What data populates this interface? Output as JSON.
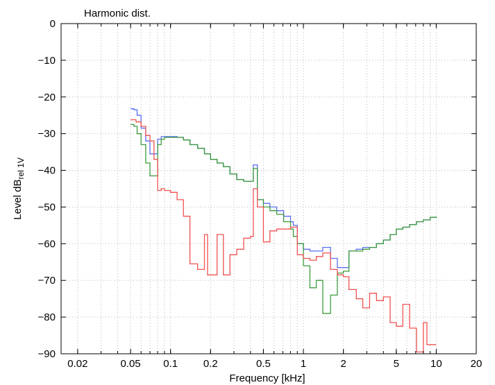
{
  "chart_data": {
    "type": "line",
    "title": "Harmonic dist.",
    "xlabel": "Frequency [kHz]",
    "ylabel": {
      "main": "Level dB",
      "sub": "rel 1V"
    },
    "xscale": "log",
    "xlim": [
      0.015,
      20
    ],
    "ylim": [
      -90,
      0
    ],
    "grid": true,
    "legend": "none",
    "xticks": [
      {
        "v": 0.02,
        "label": "0.02"
      },
      {
        "v": 0.05,
        "label": "0.05"
      },
      {
        "v": 0.1,
        "label": "0.1"
      },
      {
        "v": 0.2,
        "label": "0.2"
      },
      {
        "v": 0.5,
        "label": "0.5"
      },
      {
        "v": 1,
        "label": "1"
      },
      {
        "v": 2,
        "label": "2"
      },
      {
        "v": 5,
        "label": "5"
      },
      {
        "v": 10,
        "label": "10"
      },
      {
        "v": 20,
        "label": "20"
      }
    ],
    "yticks": [
      0,
      -10,
      -20,
      -30,
      -40,
      -50,
      -60,
      -70,
      -80,
      -90
    ],
    "series": [
      {
        "color": "#5a6ef0",
        "points": [
          [
            0.05,
            -23.2
          ],
          [
            0.053,
            -23.5
          ],
          [
            0.056,
            -25
          ],
          [
            0.06,
            -28.5
          ],
          [
            0.065,
            -32
          ],
          [
            0.07,
            -35.5
          ],
          [
            0.075,
            -35.5
          ],
          [
            0.08,
            -31.5
          ],
          [
            0.085,
            -30.8
          ],
          [
            0.09,
            -30.8
          ],
          [
            0.1,
            -30.8
          ],
          [
            0.112,
            -31
          ],
          [
            0.125,
            -31.7
          ],
          [
            0.14,
            -33
          ],
          [
            0.16,
            -34
          ],
          [
            0.18,
            -35.5
          ],
          [
            0.2,
            -37
          ],
          [
            0.224,
            -38
          ],
          [
            0.25,
            -39
          ],
          [
            0.28,
            -41
          ],
          [
            0.315,
            -42.5
          ],
          [
            0.355,
            -43
          ],
          [
            0.4,
            -43
          ],
          [
            0.42,
            -38.5
          ],
          [
            0.45,
            -38.5
          ],
          [
            0.45,
            -48
          ],
          [
            0.5,
            -49
          ],
          [
            0.56,
            -50
          ],
          [
            0.63,
            -51
          ],
          [
            0.71,
            -52.5
          ],
          [
            0.8,
            -54
          ],
          [
            0.84,
            -55
          ],
          [
            0.9,
            -60
          ],
          [
            1.0,
            -61.5
          ],
          [
            1.12,
            -62
          ],
          [
            1.25,
            -62
          ],
          [
            1.4,
            -61
          ],
          [
            1.6,
            -64
          ],
          [
            1.8,
            -66.5
          ],
          [
            2.0,
            -66.5
          ],
          [
            2.2,
            -62
          ],
          [
            2.5,
            -61.5
          ],
          [
            2.8,
            -61
          ],
          [
            3.15,
            -61
          ],
          [
            3.55,
            -60
          ],
          [
            4.0,
            -59
          ],
          [
            4.5,
            -57.5
          ],
          [
            5.0,
            -56
          ],
          [
            5.6,
            -55.5
          ],
          [
            6.3,
            -54.8
          ],
          [
            7.1,
            -54
          ],
          [
            8.0,
            -53.5
          ],
          [
            9.0,
            -52.8
          ],
          [
            10.0,
            -52.6
          ]
        ]
      },
      {
        "color": "#3c9a3c",
        "points": [
          [
            0.05,
            -27.5
          ],
          [
            0.053,
            -28
          ],
          [
            0.056,
            -30
          ],
          [
            0.06,
            -33
          ],
          [
            0.065,
            -38
          ],
          [
            0.07,
            -41.5
          ],
          [
            0.075,
            -41.5
          ],
          [
            0.08,
            -33
          ],
          [
            0.085,
            -31.5
          ],
          [
            0.09,
            -31
          ],
          [
            0.1,
            -31
          ],
          [
            0.112,
            -31
          ],
          [
            0.125,
            -31.7
          ],
          [
            0.14,
            -33
          ],
          [
            0.16,
            -34
          ],
          [
            0.18,
            -35.5
          ],
          [
            0.2,
            -37
          ],
          [
            0.224,
            -38
          ],
          [
            0.25,
            -39
          ],
          [
            0.28,
            -41
          ],
          [
            0.315,
            -42.5
          ],
          [
            0.355,
            -43
          ],
          [
            0.4,
            -43
          ],
          [
            0.42,
            -39.5
          ],
          [
            0.45,
            -39.5
          ],
          [
            0.45,
            -48
          ],
          [
            0.5,
            -50
          ],
          [
            0.56,
            -51
          ],
          [
            0.63,
            -52
          ],
          [
            0.71,
            -54
          ],
          [
            0.8,
            -56
          ],
          [
            0.84,
            -58
          ],
          [
            0.9,
            -60
          ],
          [
            1.0,
            -66
          ],
          [
            1.12,
            -72
          ],
          [
            1.25,
            -70
          ],
          [
            1.4,
            -79
          ],
          [
            1.6,
            -74
          ],
          [
            1.8,
            -68
          ],
          [
            2.0,
            -67.5
          ],
          [
            2.2,
            -62
          ],
          [
            2.5,
            -62
          ],
          [
            2.8,
            -61.5
          ],
          [
            3.15,
            -61
          ],
          [
            3.55,
            -60
          ],
          [
            4.0,
            -59
          ],
          [
            4.5,
            -57.5
          ],
          [
            5.0,
            -56
          ],
          [
            5.6,
            -55.5
          ],
          [
            6.3,
            -54.8
          ],
          [
            7.1,
            -54
          ],
          [
            8.0,
            -53.5
          ],
          [
            9.0,
            -52.8
          ],
          [
            10.0,
            -52.6
          ]
        ]
      },
      {
        "color": "#f05050",
        "points": [
          [
            0.05,
            -26.2
          ],
          [
            0.055,
            -26.8
          ],
          [
            0.06,
            -28
          ],
          [
            0.065,
            -30.5
          ],
          [
            0.07,
            -32
          ],
          [
            0.075,
            -37
          ],
          [
            0.08,
            -45.5
          ],
          [
            0.085,
            -45
          ],
          [
            0.09,
            -45.5
          ],
          [
            0.1,
            -46
          ],
          [
            0.112,
            -48
          ],
          [
            0.125,
            -52.5
          ],
          [
            0.14,
            -65.5
          ],
          [
            0.16,
            -67
          ],
          [
            0.18,
            -57.5
          ],
          [
            0.19,
            -68.5
          ],
          [
            0.2,
            -68.5
          ],
          [
            0.224,
            -57.5
          ],
          [
            0.25,
            -68.5
          ],
          [
            0.28,
            -63
          ],
          [
            0.315,
            -61.5
          ],
          [
            0.355,
            -58.5
          ],
          [
            0.4,
            -58
          ],
          [
            0.42,
            -45
          ],
          [
            0.45,
            -50
          ],
          [
            0.5,
            -59.5
          ],
          [
            0.56,
            -56.5
          ],
          [
            0.63,
            -56
          ],
          [
            0.71,
            -56
          ],
          [
            0.8,
            -55.5
          ],
          [
            0.9,
            -63
          ],
          [
            1.0,
            -64
          ],
          [
            1.12,
            -64.5
          ],
          [
            1.25,
            -63.5
          ],
          [
            1.4,
            -62.5
          ],
          [
            1.6,
            -67
          ],
          [
            1.8,
            -68.5
          ],
          [
            2.0,
            -69
          ],
          [
            2.2,
            -72.5
          ],
          [
            2.5,
            -75
          ],
          [
            2.8,
            -77.5
          ],
          [
            3.15,
            -73.5
          ],
          [
            3.55,
            -75.5
          ],
          [
            4.0,
            -74.5
          ],
          [
            4.5,
            -81.5
          ],
          [
            5.0,
            -82.5
          ],
          [
            5.6,
            -76.5
          ],
          [
            6.3,
            -83
          ],
          [
            7.1,
            -89.5
          ],
          [
            8.0,
            -81.5
          ],
          [
            8.5,
            -87.5
          ],
          [
            10.0,
            -87.5
          ]
        ]
      }
    ]
  }
}
